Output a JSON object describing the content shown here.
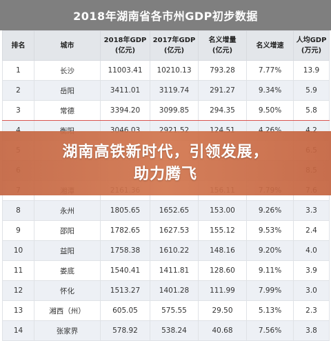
{
  "title": "2018年湖南省各市州GDP初步数据",
  "table": {
    "headers": [
      [
        "排名"
      ],
      [
        "城市"
      ],
      [
        "2018年GDP",
        "(亿元)"
      ],
      [
        "2017年GDP",
        "(亿元)"
      ],
      [
        "名义增量",
        "(亿元)"
      ],
      [
        "名义增速"
      ],
      [
        "人均GDP",
        "(万元)"
      ]
    ],
    "rows": [
      [
        "1",
        "长沙",
        "11003.41",
        "10210.13",
        "793.28",
        "7.77%",
        "13.9"
      ],
      [
        "2",
        "岳阳",
        "3411.01",
        "3119.74",
        "291.27",
        "9.34%",
        "5.9"
      ],
      [
        "3",
        "常德",
        "3394.20",
        "3099.85",
        "294.35",
        "9.50%",
        "5.8"
      ],
      [
        "4",
        "衡阳",
        "3046.03",
        "2921.52",
        "124.51",
        "4.26%",
        "4.2"
      ],
      [
        "5",
        "",
        "",
        "",
        "",
        "",
        "6.5"
      ],
      [
        "6",
        "",
        "",
        "",
        "",
        "",
        "8.5"
      ],
      [
        "7",
        "湘潭",
        "2161.36",
        "",
        "156.11",
        "7.79%",
        "7.6"
      ],
      [
        "8",
        "永州",
        "1805.65",
        "1652.65",
        "153.00",
        "9.26%",
        "3.3"
      ],
      [
        "9",
        "邵阳",
        "1782.65",
        "1627.53",
        "155.12",
        "9.53%",
        "2.4"
      ],
      [
        "10",
        "益阳",
        "1758.38",
        "1610.22",
        "148.16",
        "9.20%",
        "4.0"
      ],
      [
        "11",
        "娄底",
        "1540.41",
        "1411.81",
        "128.60",
        "9.11%",
        "3.9"
      ],
      [
        "12",
        "怀化",
        "1513.27",
        "1401.28",
        "111.99",
        "7.99%",
        "3.0"
      ],
      [
        "13",
        "湘西（州）",
        "605.05",
        "575.55",
        "29.50",
        "5.13%",
        "2.3"
      ],
      [
        "14",
        "张家界",
        "578.92",
        "538.24",
        "40.68",
        "7.56%",
        "3.8"
      ]
    ]
  },
  "overlay": {
    "line1": "湖南高铁新时代，引领发展，",
    "line2": "助力腾飞"
  },
  "colors": {
    "title_bg": "#7f7f7f",
    "header_bg": "#e3e6ea",
    "stripe": "#edf0f5",
    "highlight_border": "#d9534f",
    "overlay_bg": "#c96a45"
  }
}
